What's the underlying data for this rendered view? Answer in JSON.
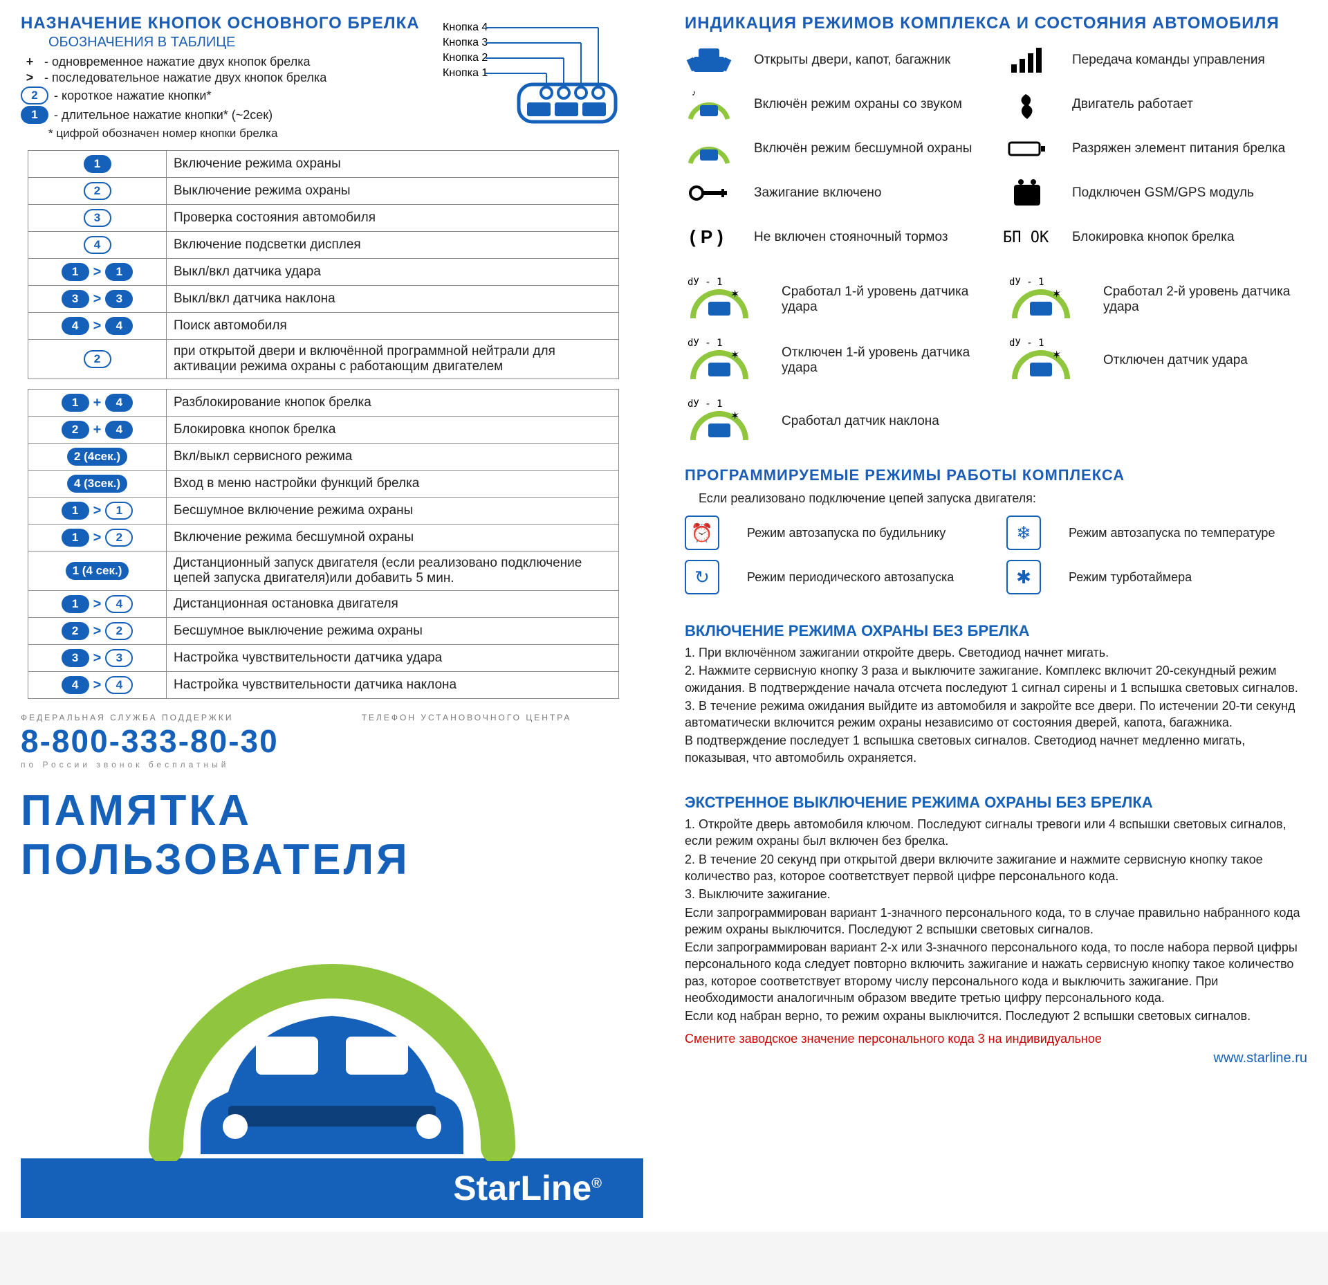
{
  "colors": {
    "blue": "#1560b8",
    "green": "#8fc63e",
    "red": "#c00000",
    "gray": "#8a8a8a"
  },
  "left": {
    "title": "НАЗНАЧЕНИЕ КНОПОК ОСНОВНОГО БРЕЛКА",
    "subtitle": "ОБОЗНАЧЕНИЯ В ТАБЛИЦЕ",
    "legend": [
      {
        "sym": "+",
        "text": "- одновременное нажатие двух кнопок брелка"
      },
      {
        "sym": ">",
        "text": "- последовательное нажатие двух кнопок брелка"
      },
      {
        "sym": "2",
        "style": "white",
        "text": "- короткое нажатие кнопки*"
      },
      {
        "sym": "1",
        "style": "blue",
        "text": "- длительное нажатие кнопки* (~2сек)"
      }
    ],
    "footnote": "* цифрой обозначен номер кнопки брелка",
    "remote_labels": [
      "Кнопка 1",
      "Кнопка 2",
      "Кнопка 3",
      "Кнопка 4"
    ],
    "table1": [
      {
        "keys": [
          {
            "n": "1",
            "s": "b"
          }
        ],
        "text": "Включение режима охраны"
      },
      {
        "keys": [
          {
            "n": "2",
            "s": "w"
          }
        ],
        "text": "Выключение режима охраны"
      },
      {
        "keys": [
          {
            "n": "3",
            "s": "w"
          }
        ],
        "text": "Проверка состояния автомобиля"
      },
      {
        "keys": [
          {
            "n": "4",
            "s": "w"
          }
        ],
        "text": "Включение подсветки дисплея"
      },
      {
        "keys": [
          {
            "n": "1",
            "s": "b"
          },
          {
            "op": ">"
          },
          {
            "n": "1",
            "s": "b"
          }
        ],
        "text": "Выкл/вкл датчика удара"
      },
      {
        "keys": [
          {
            "n": "3",
            "s": "b"
          },
          {
            "op": ">"
          },
          {
            "n": "3",
            "s": "b"
          }
        ],
        "text": "Выкл/вкл датчика наклона"
      },
      {
        "keys": [
          {
            "n": "4",
            "s": "b"
          },
          {
            "op": ">"
          },
          {
            "n": "4",
            "s": "b"
          }
        ],
        "text": "Поиск автомобиля"
      },
      {
        "keys": [
          {
            "n": "2",
            "s": "w"
          }
        ],
        "text": "при открытой двери и включённой программной нейтрали для активации режима охраны с работающим двигателем"
      }
    ],
    "table2": [
      {
        "keys": [
          {
            "n": "1",
            "s": "b"
          },
          {
            "op": "+"
          },
          {
            "n": "4",
            "s": "b"
          }
        ],
        "text": "Разблокирование кнопок брелка"
      },
      {
        "keys": [
          {
            "n": "2",
            "s": "b"
          },
          {
            "op": "+"
          },
          {
            "n": "4",
            "s": "b"
          }
        ],
        "text": "Блокировка кнопок брелка"
      },
      {
        "keys": [
          {
            "n": "2 (4сек.)",
            "s": "b"
          }
        ],
        "text": "Вкл/выкл сервисного режима"
      },
      {
        "keys": [
          {
            "n": "4 (3сек.)",
            "s": "b"
          }
        ],
        "text": "Вход в меню настройки функций брелка"
      },
      {
        "keys": [
          {
            "n": "1",
            "s": "b"
          },
          {
            "op": ">"
          },
          {
            "n": "1",
            "s": "w"
          }
        ],
        "text": "Бесшумное включение режима охраны"
      },
      {
        "keys": [
          {
            "n": "1",
            "s": "b"
          },
          {
            "op": ">"
          },
          {
            "n": "2",
            "s": "w"
          }
        ],
        "text": "Включение режима бесшумной охраны"
      },
      {
        "keys": [
          {
            "n": "1 (4 сек.)",
            "s": "b"
          }
        ],
        "text": "Дистанционный запуск двигателя (если реализовано подключение цепей запуска двигателя)или добавить 5 мин."
      },
      {
        "keys": [
          {
            "n": "1",
            "s": "b"
          },
          {
            "op": ">"
          },
          {
            "n": "4",
            "s": "w"
          }
        ],
        "text": "Дистанционная остановка двигателя"
      },
      {
        "keys": [
          {
            "n": "2",
            "s": "b"
          },
          {
            "op": ">"
          },
          {
            "n": "2",
            "s": "w"
          }
        ],
        "text": "Бесшумное выключение режима охраны"
      },
      {
        "keys": [
          {
            "n": "3",
            "s": "b"
          },
          {
            "op": ">"
          },
          {
            "n": "3",
            "s": "w"
          }
        ],
        "text": "Настройка чувствительности датчика удара"
      },
      {
        "keys": [
          {
            "n": "4",
            "s": "b"
          },
          {
            "op": ">"
          },
          {
            "n": "4",
            "s": "w"
          }
        ],
        "text": "Настройка чувствительности датчика наклона"
      }
    ],
    "support": {
      "label1": "ФЕДЕРАЛЬНАЯ СЛУЖБА ПОДДЕРЖКИ",
      "phone": "8-800-333-80-30",
      "sub": "по России звонок бесплатный",
      "label2": "ТЕЛЕФОН УСТАНОВОЧНОГО ЦЕНТРА"
    },
    "banner_title": "ПАМЯТКА ПОЛЬЗОВАТЕЛЯ",
    "brand": "StarLine"
  },
  "right": {
    "title": "ИНДИКАЦИЯ РЕЖИМОВ КОМПЛЕКСА И СОСТОЯНИЯ АВТОМОБИЛЯ",
    "indicators": [
      {
        "icon": "car-open",
        "label": "Открыты двери, капот, багажник"
      },
      {
        "icon": "bars",
        "label": "Передача команды управления"
      },
      {
        "icon": "car-arc-sound",
        "label": "Включён режим охраны со звуком"
      },
      {
        "icon": "smoke",
        "label": "Двигатель работает"
      },
      {
        "icon": "car-arc",
        "label": "Включён режим бесшумной охраны"
      },
      {
        "icon": "battery",
        "label": "Разряжен элемент питания брелка"
      },
      {
        "icon": "key",
        "label": "Зажигание включено"
      },
      {
        "icon": "gsm",
        "label": "Подключен GSM/GPS модуль"
      },
      {
        "icon": "park",
        "label": "Не включен стояночный тормоз"
      },
      {
        "icon": "lock-digits",
        "label": "Блокировка кнопок брелка"
      }
    ],
    "sensors": [
      {
        "label": "Сработал 1-й уровень датчика удара"
      },
      {
        "label": "Сработал 2-й уровень датчика удара"
      },
      {
        "label": "Отключен 1-й уровень датчика удара"
      },
      {
        "label": "Отключен датчик удара"
      },
      {
        "label": "Сработал датчик наклона"
      }
    ],
    "prog_title": "ПРОГРАММИРУЕМЫЕ РЕЖИМЫ РАБОТЫ КОМПЛЕКСА",
    "prog_sub": "Если реализовано подключение цепей запуска двигателя:",
    "modes": [
      {
        "icon": "⏰",
        "label": "Режим автозапуска по будильнику"
      },
      {
        "icon": "❄",
        "label": "Режим автозапуска по температуре"
      },
      {
        "icon": "↻",
        "label": "Режим периодического автозапуска"
      },
      {
        "icon": "✱",
        "label": "Режим турботаймера"
      }
    ],
    "instr1_title": "ВКЛЮЧЕНИЕ РЕЖИМА ОХРАНЫ БЕЗ БРЕЛКА",
    "instr1": [
      "1. При включённом зажигании откройте дверь. Светодиод начнет мигать.",
      "2. Нажмите сервисную кнопку 3 раза и выключите зажигание. Комплекс включит 20-секундный режим ожидания. В подтверждение начала отсчета последуют 1 сигнал сирены и 1 вспышка световых сигналов.",
      "3. В течение режима ожидания выйдите из автомобиля и закройте все двери. По истечении 20-ти секунд автоматически включится режим охраны независимо от состояния дверей, капота, багажника.",
      "В подтверждение последует 1 вспышка световых сигналов. Светодиод начнет медленно мигать, показывая, что автомобиль охраняется."
    ],
    "instr2_title": "ЭКСТРЕННОЕ ВЫКЛЮЧЕНИЕ РЕЖИМА ОХРАНЫ БЕЗ БРЕЛКА",
    "instr2": [
      "1. Откройте дверь автомобиля ключом. Последуют сигналы тревоги или 4 вспышки световых сигналов, если режим охраны был включен без брелка.",
      "2. В течение 20 секунд при открытой двери включите зажигание и нажмите сервисную кнопку такое количество раз, которое соответствует первой цифре персонального кода.",
      "3. Выключите зажигание.",
      "Если запрограммирован вариант 1-значного персонального кода, то в случае правильно набранного кода режим охраны выключится. Последуют 2 вспышки световых сигналов.",
      "Если запрограммирован вариант 2-х или 3-значного персонального кода, то после набора первой цифры персонального кода следует повторно включить зажигание и нажать сервисную кнопку такое количество раз, которое соответствует второму числу персонального кода и выключить зажигание. При необходимости аналогичным образом введите третью цифру персонального кода.",
      "Если код набран верно, то режим охраны выключится. Последуют 2 вспышки световых сигналов."
    ],
    "red_note": "Смените заводское значение персонального кода 3 на индивидуальное",
    "url": "www.starline.ru"
  }
}
